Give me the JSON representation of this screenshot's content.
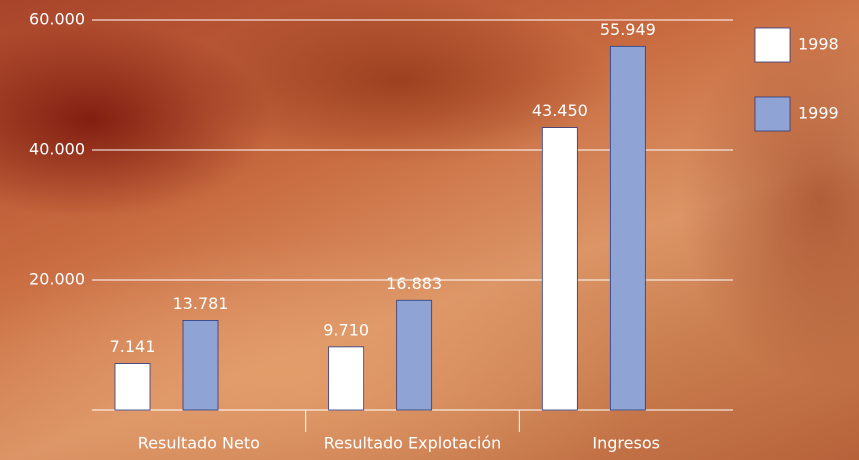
{
  "chart_data": {
    "type": "bar",
    "categories": [
      "Resultado Neto",
      "Resultado Explotación",
      "Ingresos"
    ],
    "series": [
      {
        "name": "1998",
        "color": "#ffffff",
        "values": [
          7141,
          9710,
          43450
        ],
        "value_labels": [
          "7.141",
          "9.710",
          "43.450"
        ]
      },
      {
        "name": "1999",
        "color": "#8fa3d4",
        "values": [
          13781,
          16883,
          55949
        ],
        "value_labels": [
          "13.781",
          "16.883",
          "55.949"
        ]
      }
    ],
    "ylim": [
      0,
      60000
    ],
    "yticks": [
      {
        "value": 20000,
        "label": "20.000"
      },
      {
        "value": 40000,
        "label": "40.000"
      },
      {
        "value": 60000,
        "label": "60.000"
      }
    ],
    "grid": true,
    "legend": "right"
  }
}
